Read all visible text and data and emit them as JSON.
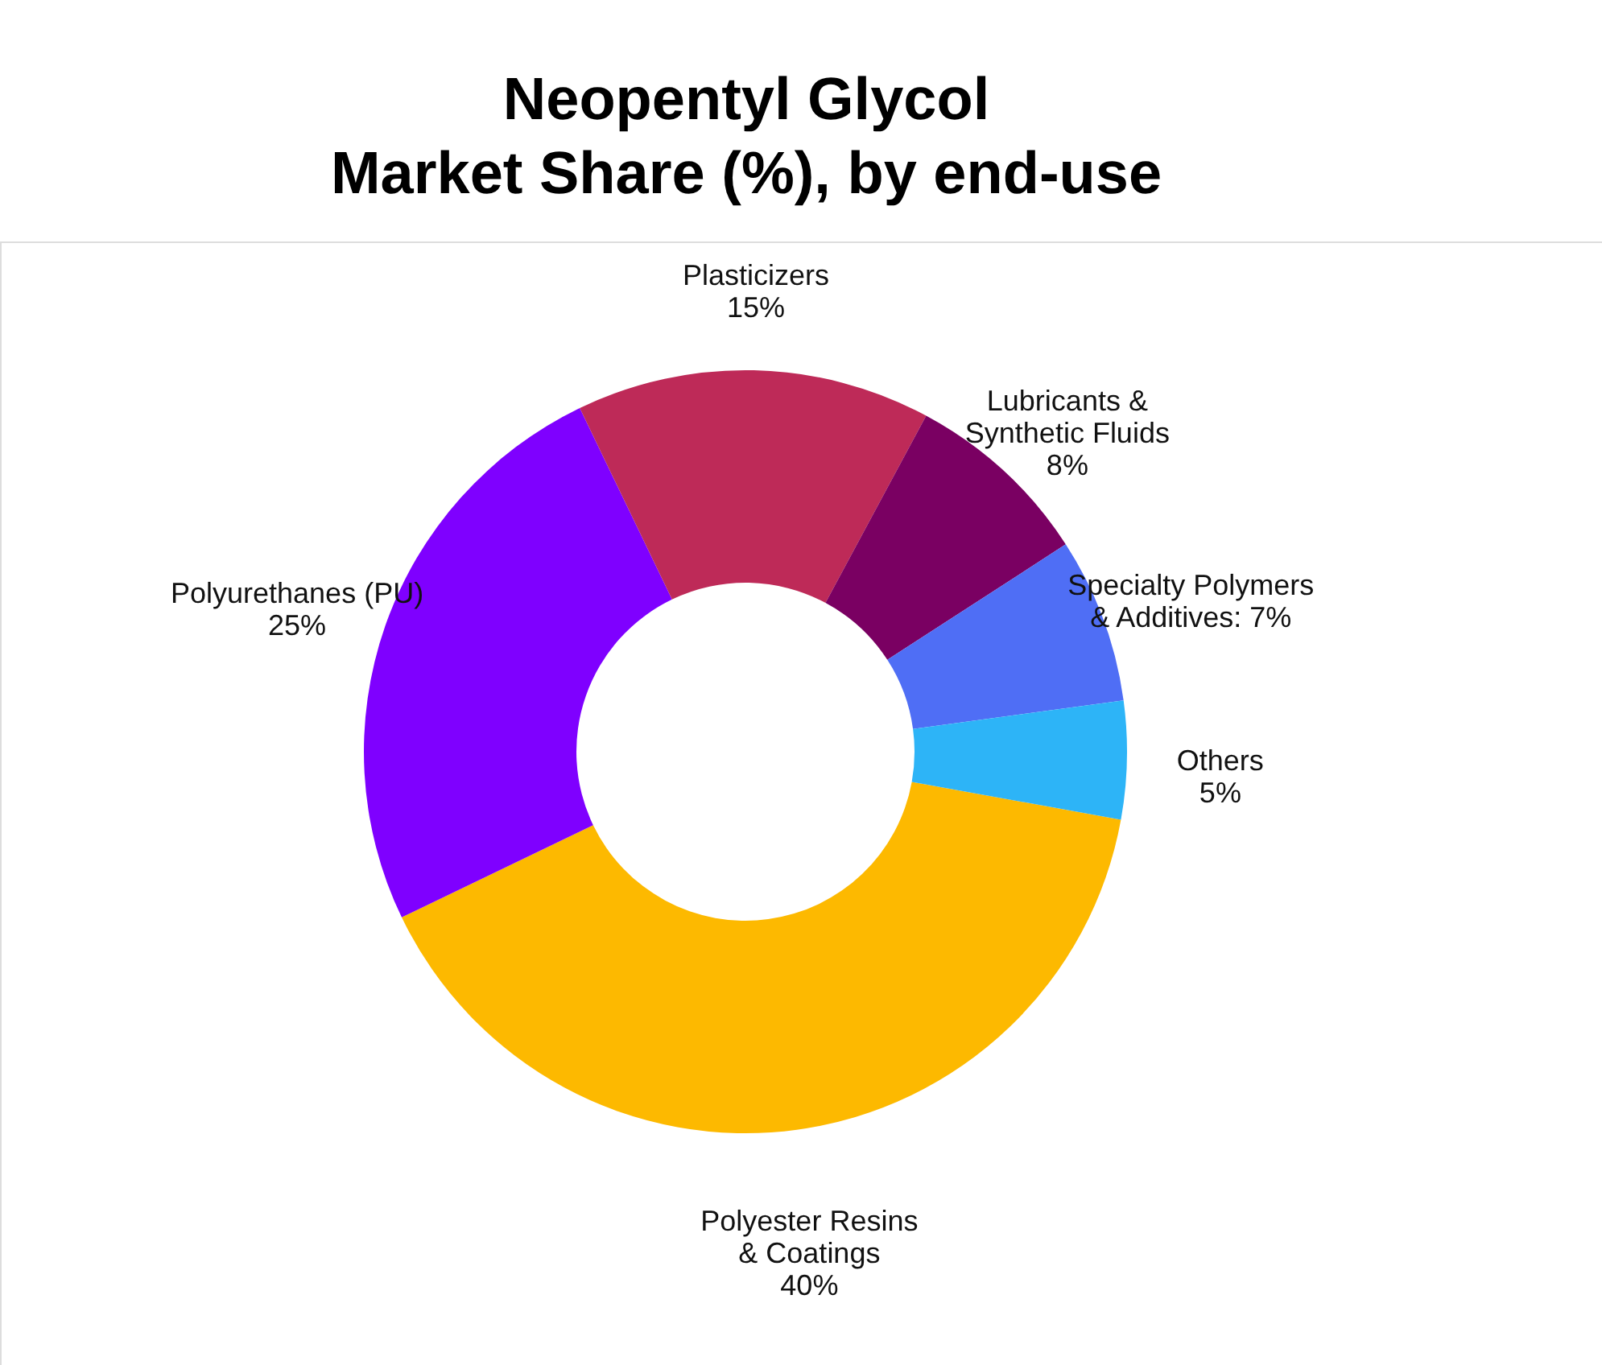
{
  "chart_data": {
    "type": "donut",
    "title": "Neopentyl Glycol\nMarket Share (%), by end-use",
    "categories": [
      "Polyester Resins\n& Coatings",
      "Polyurethanes (PU)",
      "Plasticizers",
      "Lubricants &\nSynthetic Fluids",
      "Specialty Polymers\n& Additives",
      "Others"
    ],
    "value_labels": [
      "40%",
      "25%",
      "15%",
      "8%",
      "7%",
      "5%"
    ],
    "values": [
      40,
      25,
      15,
      8,
      7,
      5
    ],
    "colors": [
      "#fdb900",
      "#7f00ff",
      "#be2a58",
      "#7a0062",
      "#4f6ef5",
      "#2db4f7"
    ],
    "data_labels": true,
    "legend": false
  }
}
